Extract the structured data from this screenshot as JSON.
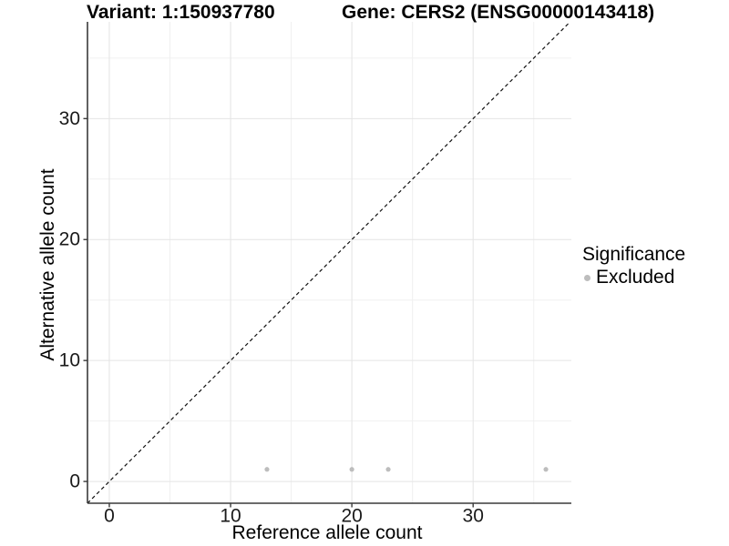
{
  "chart_data": {
    "type": "scatter",
    "title_left": "Variant: 1:150937780",
    "title_right": "Gene: CERS2 (ENSG00000143418)",
    "xlabel": "Reference allele count",
    "ylabel": "Alternative allele count",
    "xlim": [
      -1.8,
      38.1
    ],
    "ylim": [
      -1.8,
      38.0
    ],
    "x_major_ticks": [
      0,
      10,
      20,
      30
    ],
    "y_major_ticks": [
      0,
      10,
      20,
      30
    ],
    "x_minor_ticks": [
      5,
      15,
      25,
      35
    ],
    "y_minor_ticks": [
      5,
      15,
      25,
      35
    ],
    "grid": {
      "visible": true,
      "major_color": "#e4e4e4",
      "minor_color": "#f0f0f0"
    },
    "identity_line": {
      "style": "dashed",
      "color": "#111111",
      "x1": -1.8,
      "y1": -1.8,
      "x2": 38.0,
      "y2": 38.0
    },
    "series": [
      {
        "name": "Excluded",
        "color": "#bdbdbd",
        "marker": "circle",
        "points": [
          {
            "x": 13,
            "y": 1
          },
          {
            "x": 20,
            "y": 1
          },
          {
            "x": 23,
            "y": 1
          },
          {
            "x": 36,
            "y": 1
          }
        ]
      }
    ],
    "legend": {
      "title": "Significance",
      "position": "right",
      "items": [
        {
          "label": "Excluded",
          "color": "#bdbdbd"
        }
      ]
    }
  }
}
